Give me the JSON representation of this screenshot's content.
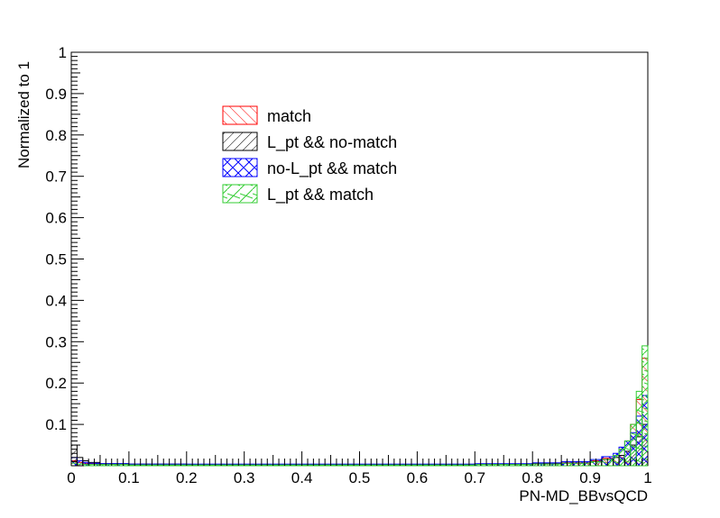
{
  "chart_data": {
    "type": "histogram",
    "title": "",
    "xlabel": "PN-MD_BBvsQCD",
    "ylabel": "Normalized to 1",
    "xlim": [
      0,
      1
    ],
    "ylim": [
      0,
      1
    ],
    "x_ticks": [
      "0",
      "0.1",
      "0.2",
      "0.3",
      "0.4",
      "0.5",
      "0.6",
      "0.7",
      "0.8",
      "0.9",
      "1"
    ],
    "y_ticks": [
      "0.1",
      "0.2",
      "0.3",
      "0.4",
      "0.5",
      "0.6",
      "0.7",
      "0.8",
      "0.9",
      "1"
    ],
    "grid": false,
    "legend_position": "upper-left-center",
    "bin_edges": [
      0.0,
      0.01,
      0.02,
      0.03,
      0.05,
      0.1,
      0.2,
      0.3,
      0.4,
      0.5,
      0.6,
      0.7,
      0.8,
      0.85,
      0.9,
      0.92,
      0.94,
      0.95,
      0.96,
      0.97,
      0.98,
      0.99,
      1.0
    ],
    "series": [
      {
        "name": "match",
        "color": "#ff0000",
        "hatch": "diagonal-up",
        "values": [
          0.012,
          0.008,
          0.006,
          0.005,
          0.004,
          0.003,
          0.003,
          0.003,
          0.003,
          0.003,
          0.003,
          0.004,
          0.005,
          0.007,
          0.012,
          0.018,
          0.025,
          0.04,
          0.06,
          0.1,
          0.16,
          0.26
        ]
      },
      {
        "name": "L_pt && no-match",
        "color": "#000000",
        "hatch": "diagonal-down",
        "values": [
          0.05,
          0.02,
          0.012,
          0.008,
          0.005,
          0.004,
          0.003,
          0.003,
          0.003,
          0.003,
          0.003,
          0.004,
          0.005,
          0.006,
          0.01,
          0.015,
          0.02,
          0.025,
          0.035,
          0.05,
          0.07,
          0.1
        ]
      },
      {
        "name": "no-L_pt && match",
        "color": "#0000ff",
        "hatch": "cross",
        "values": [
          0.02,
          0.012,
          0.008,
          0.006,
          0.005,
          0.004,
          0.004,
          0.004,
          0.004,
          0.004,
          0.004,
          0.005,
          0.007,
          0.01,
          0.015,
          0.022,
          0.03,
          0.045,
          0.06,
          0.08,
          0.12,
          0.17
        ]
      },
      {
        "name": "L_pt && match",
        "color": "#33cc33",
        "hatch": "cross-sparse",
        "values": [
          0.006,
          0.004,
          0.003,
          0.003,
          0.003,
          0.002,
          0.002,
          0.002,
          0.002,
          0.002,
          0.002,
          0.003,
          0.004,
          0.006,
          0.01,
          0.015,
          0.025,
          0.04,
          0.06,
          0.1,
          0.18,
          0.29
        ]
      }
    ]
  }
}
